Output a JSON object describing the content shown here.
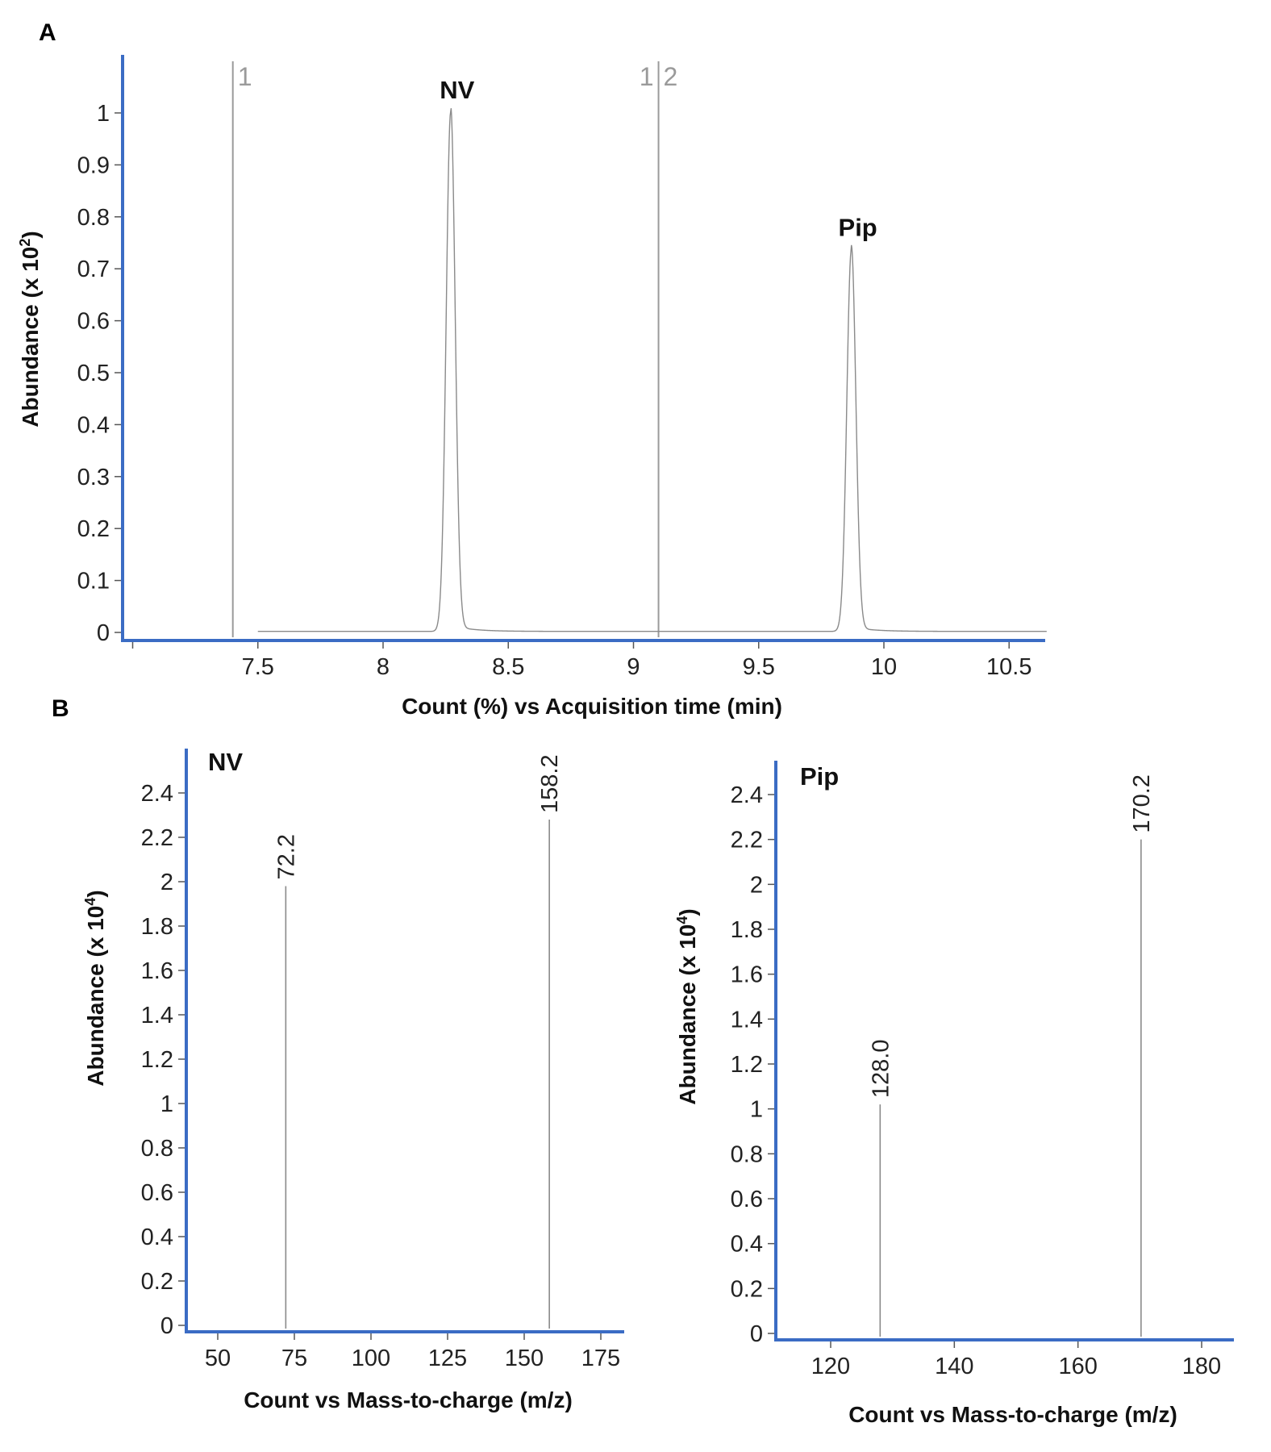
{
  "colors": {
    "axis": "#3b6cc4",
    "trace": "#8a8a8a",
    "marker": "#9a9a9a",
    "text": "#111111"
  },
  "chart_data": [
    {
      "panel": "A",
      "type": "line",
      "xlabel": "Count (%) vs Acquisition time (min)",
      "ylabel_main": "Abundance (x 10",
      "ylabel_sup": "2",
      "ylabel_close": ")",
      "xlim": [
        7.0,
        10.65
      ],
      "ylim": [
        0,
        1.08
      ],
      "x_ticks": [
        7.5,
        8,
        8.5,
        9,
        9.5,
        10,
        10.5
      ],
      "y_ticks": [
        0,
        0.1,
        0.2,
        0.3,
        0.4,
        0.5,
        0.6,
        0.7,
        0.8,
        0.9,
        1
      ],
      "trace_range": [
        7.5,
        10.65
      ],
      "baseline": 0.002,
      "peaks": [
        {
          "label": "NV",
          "x": 8.27,
          "y": 1.0
        },
        {
          "label": "Pip",
          "x": 9.87,
          "y": 0.735
        }
      ],
      "markers": [
        {
          "x": 7.4,
          "label_left": "",
          "label_right": "1"
        },
        {
          "x": 9.1,
          "label_left": "1",
          "label_right": "2"
        }
      ]
    },
    {
      "panel": "B",
      "type": "bar",
      "title": "NV",
      "xlabel": "Count vs Mass-to-charge (m/z)",
      "ylabel_main": "Abundance (x 10",
      "ylabel_sup": "4",
      "ylabel_close": ")",
      "xlim": [
        40,
        183
      ],
      "ylim": [
        0,
        2.55
      ],
      "x_ticks": [
        50,
        75,
        100,
        125,
        150,
        175
      ],
      "y_ticks": [
        0,
        0.2,
        0.4,
        0.6,
        0.8,
        1,
        1.2,
        1.4,
        1.6,
        1.8,
        2,
        2.2,
        2.4
      ],
      "sticks": [
        {
          "mz": 72.2,
          "value": 1.98,
          "label": "72.2"
        },
        {
          "mz": 158.2,
          "value": 2.28,
          "label": "158.2"
        }
      ]
    },
    {
      "panel": "",
      "type": "bar",
      "title": "Pip",
      "xlabel": "Count vs Mass-to-charge (m/z)",
      "ylabel_main": "Abundance (x 10",
      "ylabel_sup": "4",
      "ylabel_close": ")",
      "xlim": [
        111,
        186
      ],
      "ylim": [
        0,
        2.55
      ],
      "x_ticks": [
        120,
        140,
        160,
        180
      ],
      "y_ticks": [
        0,
        0.2,
        0.4,
        0.6,
        0.8,
        1,
        1.2,
        1.4,
        1.6,
        1.8,
        2,
        2.2,
        2.4
      ],
      "sticks": [
        {
          "mz": 128.0,
          "value": 1.02,
          "label": "128.0"
        },
        {
          "mz": 170.2,
          "value": 2.2,
          "label": "170.2"
        }
      ]
    }
  ]
}
